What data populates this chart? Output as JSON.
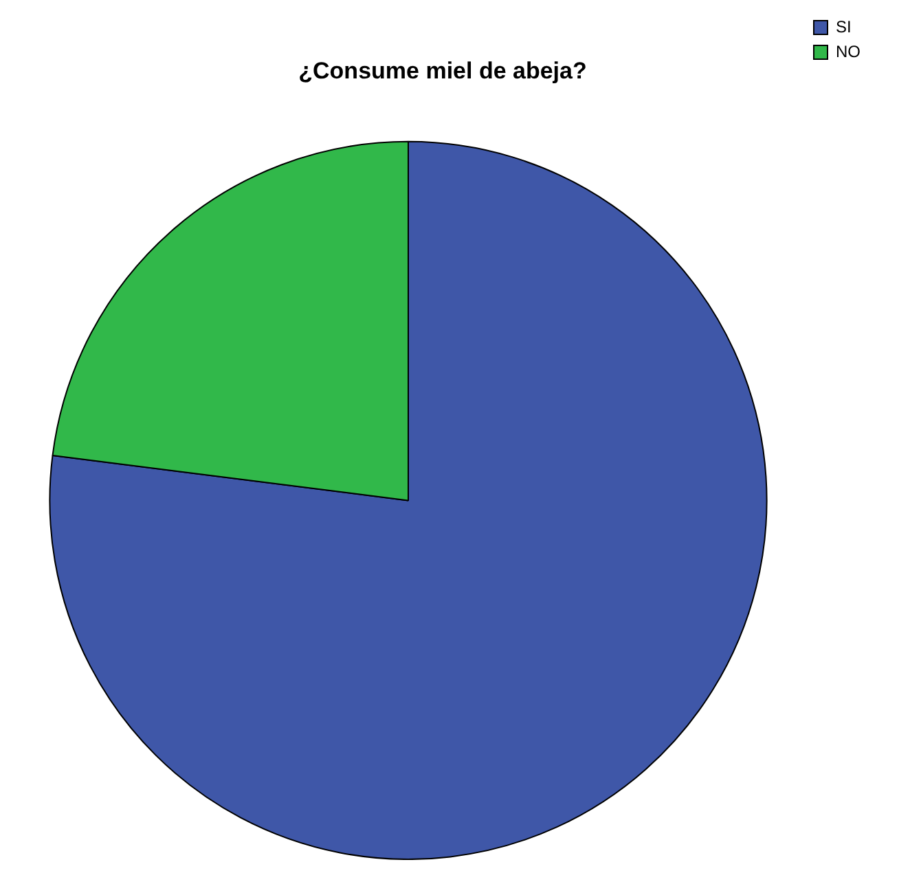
{
  "chart_data": {
    "type": "pie",
    "title": "¿Consume miel de abeja?",
    "categories": [
      "SI",
      "NO"
    ],
    "values": [
      77,
      23
    ],
    "colors": [
      "#3f57a8",
      "#31b84a"
    ],
    "legend": "top right"
  }
}
